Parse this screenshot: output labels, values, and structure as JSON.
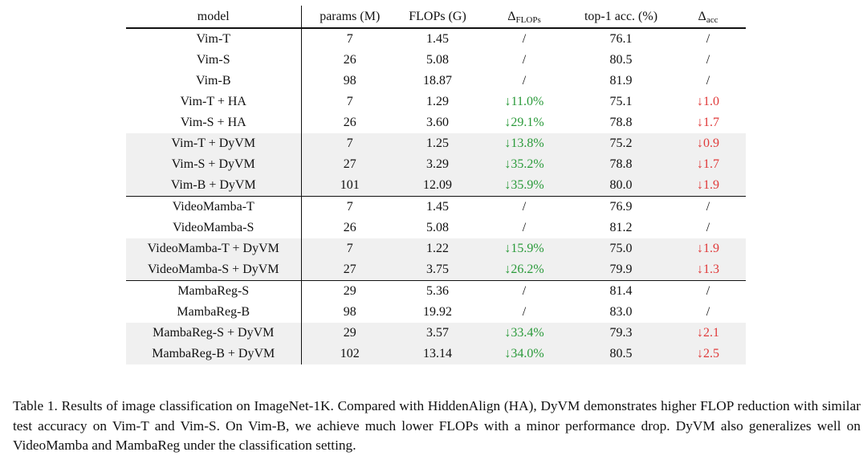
{
  "headers": {
    "model": "model",
    "params": "params (M)",
    "flops": "FLOPs (G)",
    "dflops_base": "Δ",
    "dflops_sub": "FLOPs",
    "acc": "top-1 acc. (%)",
    "dacc_base": "Δ",
    "dacc_sub": "acc"
  },
  "rows": [
    {
      "model": "Vim-T",
      "params": "7",
      "flops": "1.45",
      "dflops": "/",
      "acc": "76.1",
      "dacc": "/"
    },
    {
      "model": "Vim-S",
      "params": "26",
      "flops": "5.08",
      "dflops": "/",
      "acc": "80.5",
      "dacc": "/"
    },
    {
      "model": "Vim-B",
      "params": "98",
      "flops": "18.87",
      "dflops": "/",
      "acc": "81.9",
      "dacc": "/"
    },
    {
      "model": "Vim-T + HA",
      "params": "7",
      "flops": "1.29",
      "dflops": "↓11.0%",
      "acc": "75.1",
      "dacc": "↓1.0"
    },
    {
      "model": "Vim-S + HA",
      "params": "26",
      "flops": "3.60",
      "dflops": "↓29.1%",
      "acc": "78.8",
      "dacc": "↓1.7"
    },
    {
      "model": "Vim-T + DyVM",
      "params": "7",
      "flops": "1.25",
      "dflops": "↓13.8%",
      "acc": "75.2",
      "dacc": "↓0.9"
    },
    {
      "model": "Vim-S + DyVM",
      "params": "27",
      "flops": "3.29",
      "dflops": "↓35.2%",
      "acc": "78.8",
      "dacc": "↓1.7"
    },
    {
      "model": "Vim-B + DyVM",
      "params": "101",
      "flops": "12.09",
      "dflops": "↓35.9%",
      "acc": "80.0",
      "dacc": "↓1.9"
    },
    {
      "model": "VideoMamba-T",
      "params": "7",
      "flops": "1.45",
      "dflops": "/",
      "acc": "76.9",
      "dacc": "/"
    },
    {
      "model": "VideoMamba-S",
      "params": "26",
      "flops": "5.08",
      "dflops": "/",
      "acc": "81.2",
      "dacc": "/"
    },
    {
      "model": "VideoMamba-T + DyVM",
      "params": "7",
      "flops": "1.22",
      "dflops": "↓15.9%",
      "acc": "75.0",
      "dacc": "↓1.9"
    },
    {
      "model": "VideoMamba-S + DyVM",
      "params": "27",
      "flops": "3.75",
      "dflops": "↓26.2%",
      "acc": "79.9",
      "dacc": "↓1.3"
    },
    {
      "model": "MambaReg-S",
      "params": "29",
      "flops": "5.36",
      "dflops": "/",
      "acc": "81.4",
      "dacc": "/"
    },
    {
      "model": "MambaReg-B",
      "params": "98",
      "flops": "19.92",
      "dflops": "/",
      "acc": "83.0",
      "dacc": "/"
    },
    {
      "model": "MambaReg-S + DyVM",
      "params": "29",
      "flops": "3.57",
      "dflops": "↓33.4%",
      "acc": "79.3",
      "dacc": "↓2.1"
    },
    {
      "model": "MambaReg-B + DyVM",
      "params": "102",
      "flops": "13.14",
      "dflops": "↓34.0%",
      "acc": "80.5",
      "dacc": "↓2.5"
    }
  ],
  "caption": "Table 1. Results of image classification on ImageNet-1K. Compared with HiddenAlign (HA), DyVM demonstrates higher FLOP reduction with similar test accuracy on Vim-T and Vim-S. On Vim-B, we achieve much lower FLOPs with a minor performance drop. DyVM also generalizes well on VideoMamba and MambaReg under the classification setting.",
  "colors": {
    "reduction_green": "#2a9a3a",
    "drop_red": "#e03a3a",
    "highlight_bg": "#f0f0f0"
  }
}
